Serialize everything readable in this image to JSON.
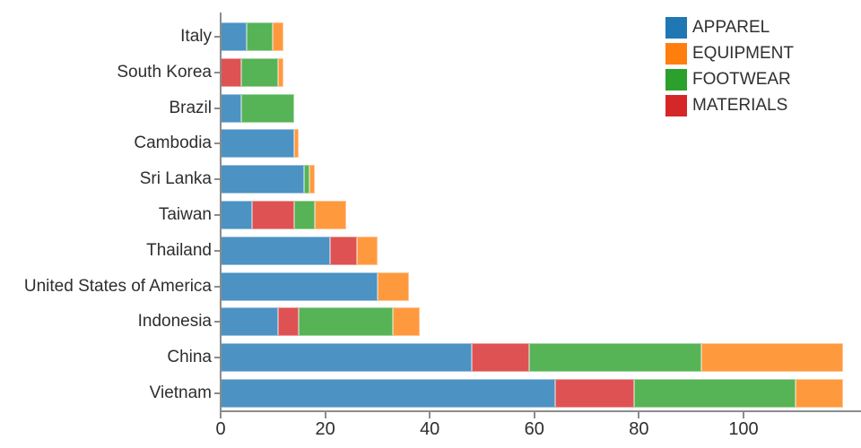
{
  "chart_data": {
    "type": "bar",
    "orientation": "horizontal",
    "stacked": true,
    "title": "",
    "xlabel": "",
    "ylabel": "",
    "categories": [
      "Italy",
      "South Korea",
      "Brazil",
      "Cambodia",
      "Sri Lanka",
      "Taiwan",
      "Thailand",
      "United States of America",
      "Indonesia",
      "China",
      "Vietnam"
    ],
    "series": [
      {
        "name": "APPAREL",
        "color": "#1f77b4",
        "values": [
          5,
          0,
          4,
          14,
          16,
          6,
          21,
          30,
          11,
          48,
          64
        ]
      },
      {
        "name": "EQUIPMENT",
        "color": "#ff7f0e",
        "values": [
          2,
          1,
          0,
          1,
          1,
          6,
          4,
          6,
          5,
          27,
          9
        ]
      },
      {
        "name": "FOOTWEAR",
        "color": "#2ca02c",
        "values": [
          5,
          7,
          10,
          0,
          1,
          4,
          0,
          0,
          18,
          33,
          31
        ]
      },
      {
        "name": "MATERIALS",
        "color": "#d62728",
        "values": [
          0,
          4,
          0,
          0,
          0,
          8,
          5,
          0,
          4,
          11,
          15
        ]
      }
    ],
    "stack_order": [
      "APPAREL",
      "MATERIALS",
      "FOOTWEAR",
      "EQUIPMENT"
    ],
    "totals": [
      12,
      12,
      14,
      15,
      18,
      24,
      30,
      36,
      38,
      119,
      119
    ],
    "xticks": [
      0,
      20,
      40,
      60,
      80,
      100
    ],
    "xlim": [
      0,
      122.5
    ],
    "grid": false,
    "legend_position": "top-right",
    "bar_fill_alpha": 0.8,
    "axis_color": "#8c8c8c",
    "text_color": "#2e2e2e"
  }
}
